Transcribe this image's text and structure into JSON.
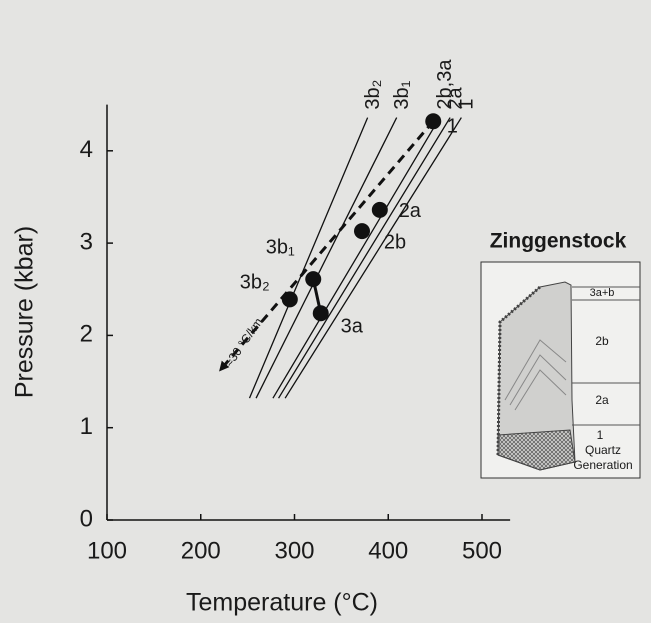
{
  "chart_data": {
    "type": "scatter",
    "xlabel": "Temperature (°C)",
    "ylabel": "Pressure (kbar)",
    "xlim": [
      100,
      530
    ],
    "ylim": [
      0,
      4.5
    ],
    "xticks": [
      100,
      200,
      300,
      400,
      500
    ],
    "yticks": [
      0,
      1,
      2,
      3,
      4
    ],
    "points": {
      "labels": [
        "1",
        "2a",
        "2b",
        "3b₁",
        "3b₂",
        "3a"
      ],
      "x": [
        448,
        391,
        372,
        320,
        295,
        328
      ],
      "y": [
        4.32,
        3.36,
        3.13,
        2.61,
        2.39,
        2.24
      ],
      "color": "#111111"
    },
    "isochores": [
      {
        "name": "3b₂",
        "x": [
          252,
          378
        ],
        "y": [
          1.32,
          4.36
        ]
      },
      {
        "name": "3b₁",
        "x": [
          259,
          409
        ],
        "y": [
          1.32,
          4.36
        ]
      },
      {
        "name": "2b,3a",
        "x": [
          277,
          455
        ],
        "y": [
          1.32,
          4.36
        ]
      },
      {
        "name": "2a",
        "x": [
          283,
          466
        ],
        "y": [
          1.32,
          4.36
        ]
      },
      {
        "name": "1",
        "x": [
          290,
          478
        ],
        "y": [
          1.32,
          4.36
        ]
      }
    ],
    "trend": {
      "label": "≈30 °C/km",
      "x": [
        448,
        223
      ],
      "y": [
        4.32,
        1.65
      ]
    },
    "inset": {
      "title": "Zinggenstock",
      "labels": [
        "3a+b",
        "2b",
        "2a",
        "1"
      ],
      "caption": [
        "Quartz",
        "Generation"
      ]
    }
  }
}
